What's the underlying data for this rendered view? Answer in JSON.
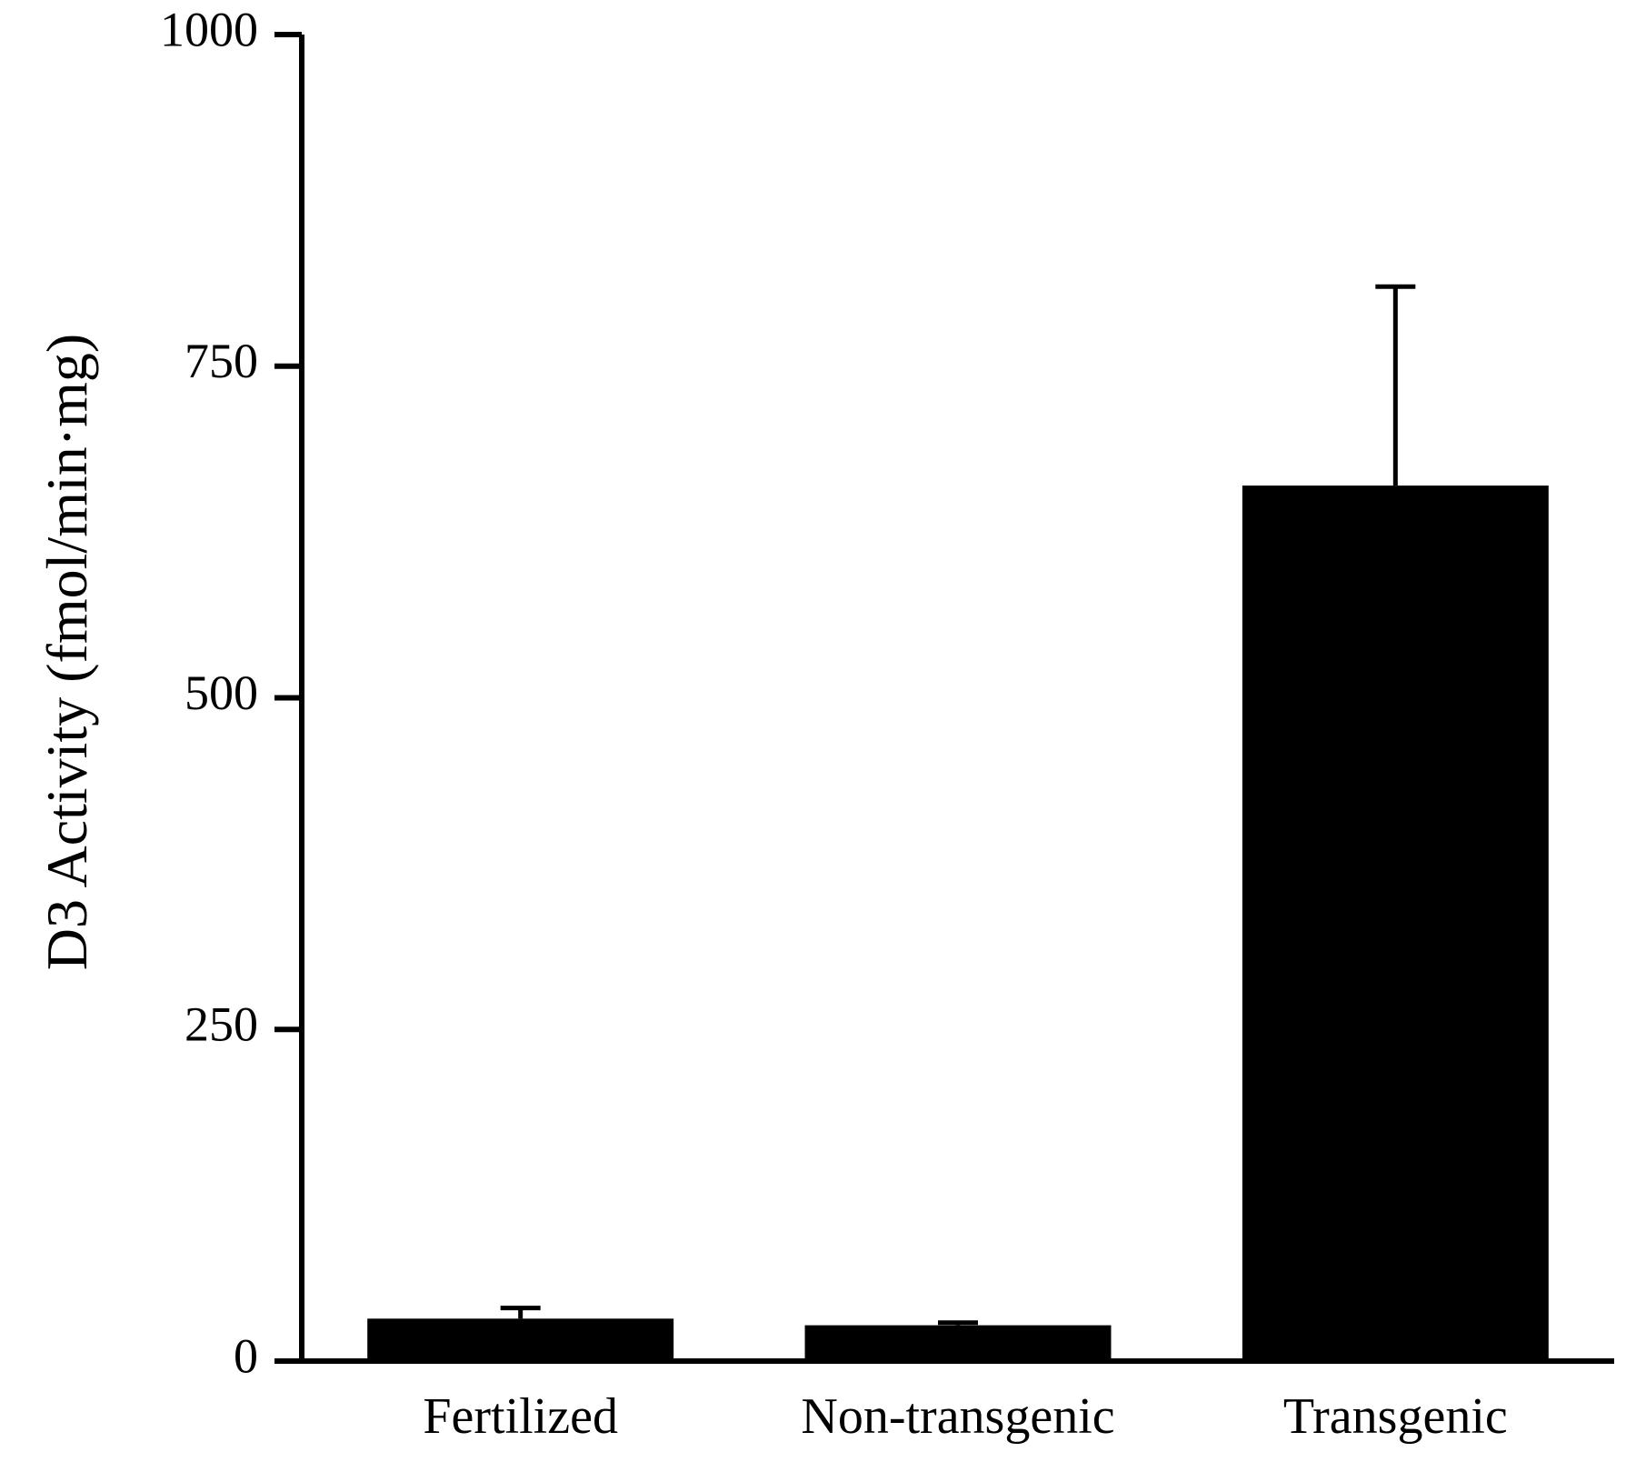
{
  "chart_data": {
    "type": "bar",
    "y_label": "D3 Activity (fmol/min·mg)",
    "categories": [
      "Fertilized",
      "Non-transgenic",
      "Transgenic"
    ],
    "values": [
      32,
      27,
      660
    ],
    "errors": [
      8,
      2,
      150
    ],
    "color": "#000000",
    "ylim": [
      0,
      1000
    ],
    "yticks": [
      0,
      250,
      500,
      750,
      1000
    ],
    "grid": false
  }
}
